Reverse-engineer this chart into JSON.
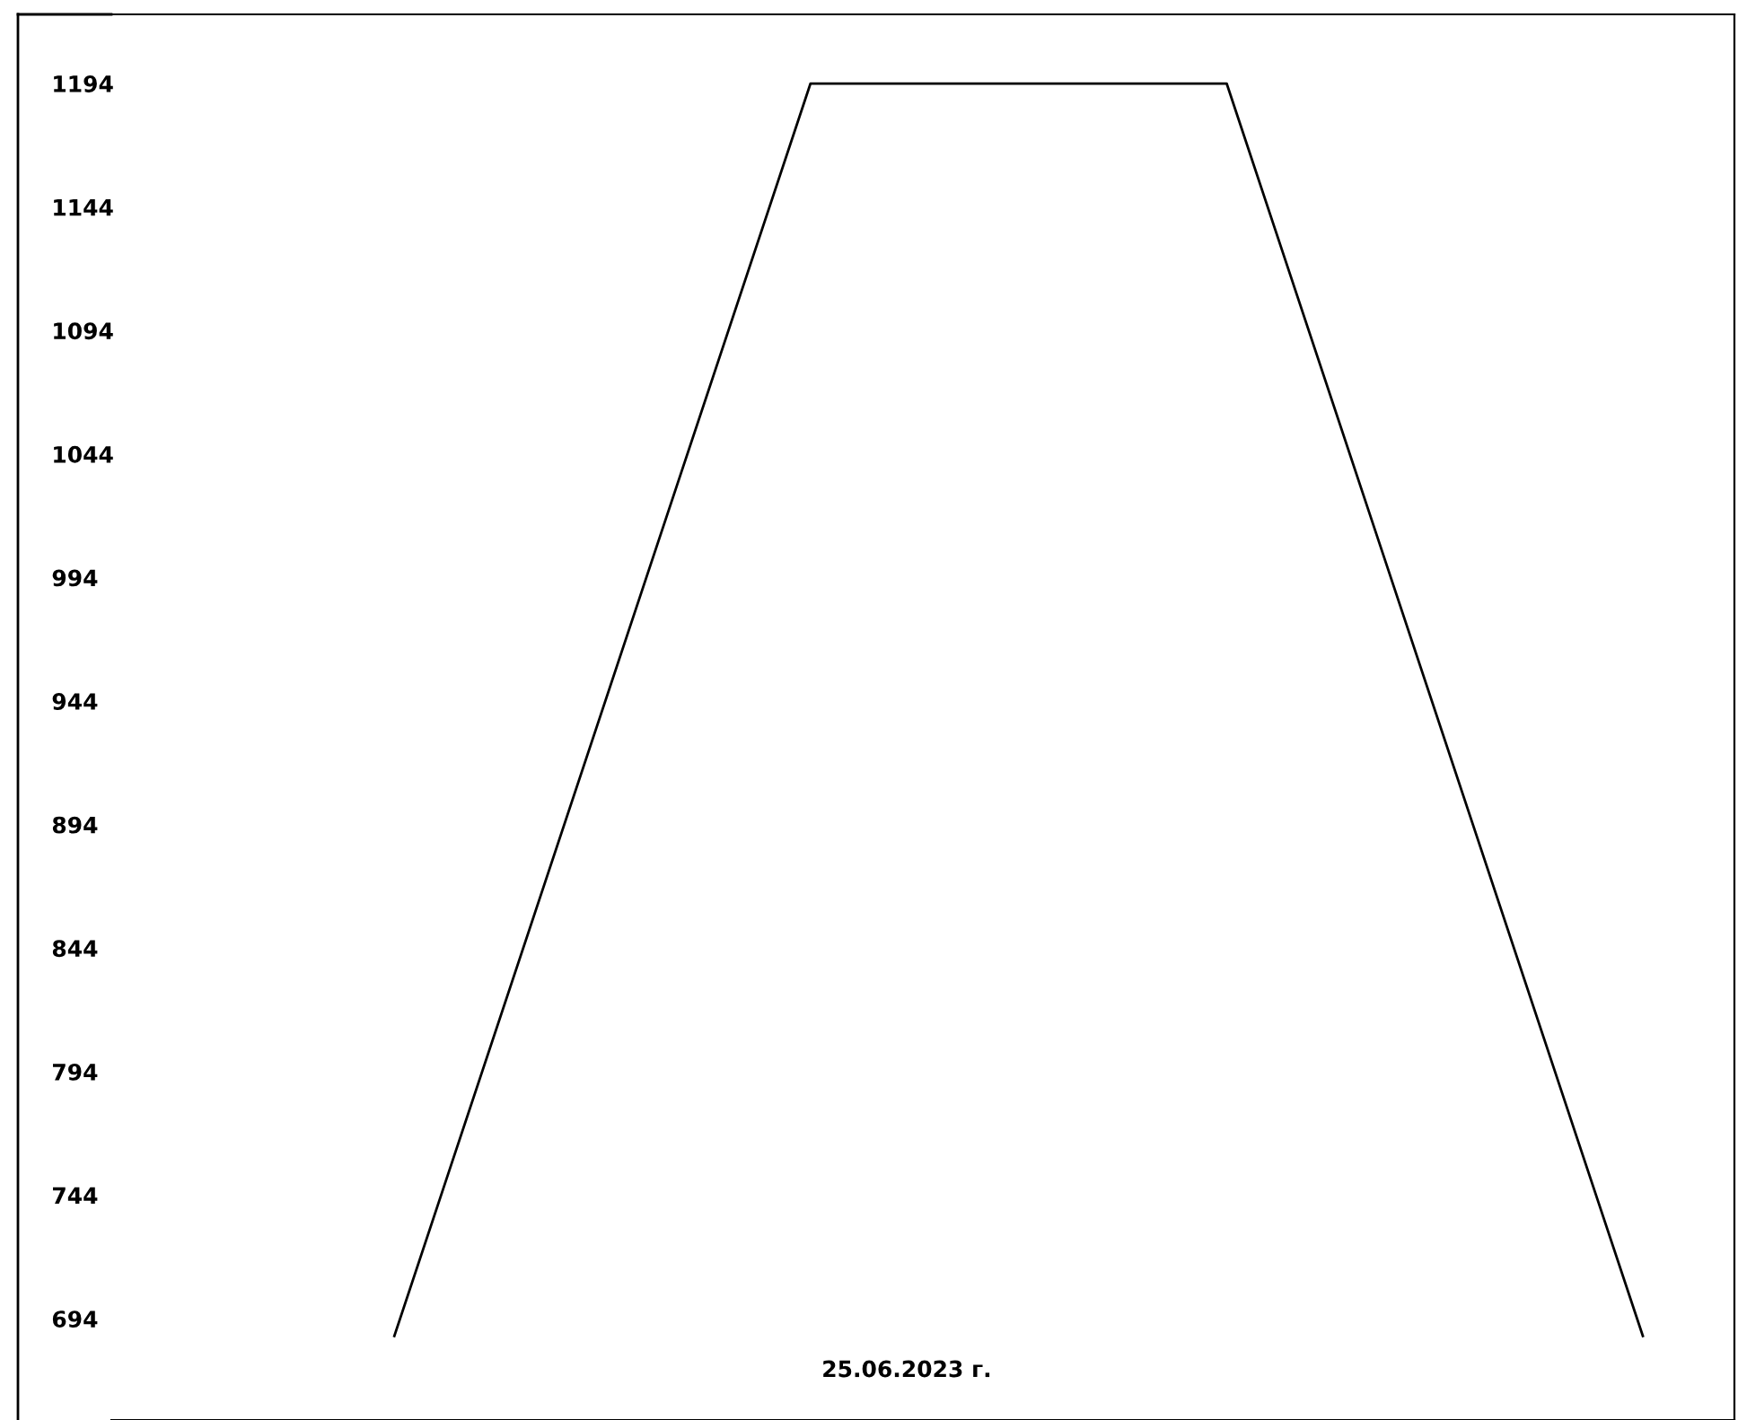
{
  "chart_data": {
    "type": "line",
    "categories": [
      null,
      null,
      null,
      null
    ],
    "series": [
      {
        "color": "#000000",
        "values": [
          687,
          1194,
          1194,
          687
        ]
      }
    ],
    "annotations": [
      "25.06.2023 г."
    ],
    "ylim": [
      653,
      1222
    ],
    "yticks": [
      694,
      744,
      794,
      844,
      894,
      944,
      994,
      1044,
      1094,
      1144,
      1194
    ],
    "marker": "none",
    "line_style": "solid"
  }
}
